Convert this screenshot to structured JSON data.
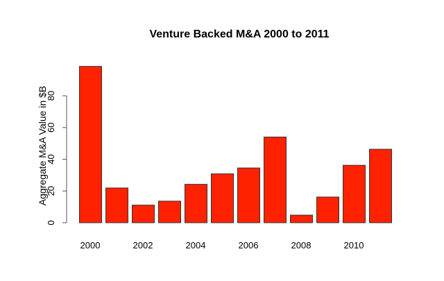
{
  "chart_data": {
    "type": "bar",
    "title": "Venture Backed M&A 2000 to 2011",
    "xlabel": "",
    "ylabel": "Aggregate M&A Value in $B",
    "categories": [
      "2000",
      "2001",
      "2002",
      "2003",
      "2004",
      "2005",
      "2006",
      "2007",
      "2008",
      "2009",
      "2010",
      "2011"
    ],
    "values": [
      98.5,
      21.9,
      11.1,
      13.6,
      24.2,
      30.8,
      34.5,
      54.0,
      4.8,
      16.2,
      36.2,
      46.3
    ],
    "x_tick_labels": [
      "2000",
      "2002",
      "2004",
      "2006",
      "2008",
      "2010"
    ],
    "y_ticks": [
      0,
      20,
      40,
      60,
      80
    ],
    "ylim": [
      0,
      100
    ],
    "grid": false,
    "bar_color": "#ff2200",
    "bar_border_color": "#333333"
  }
}
